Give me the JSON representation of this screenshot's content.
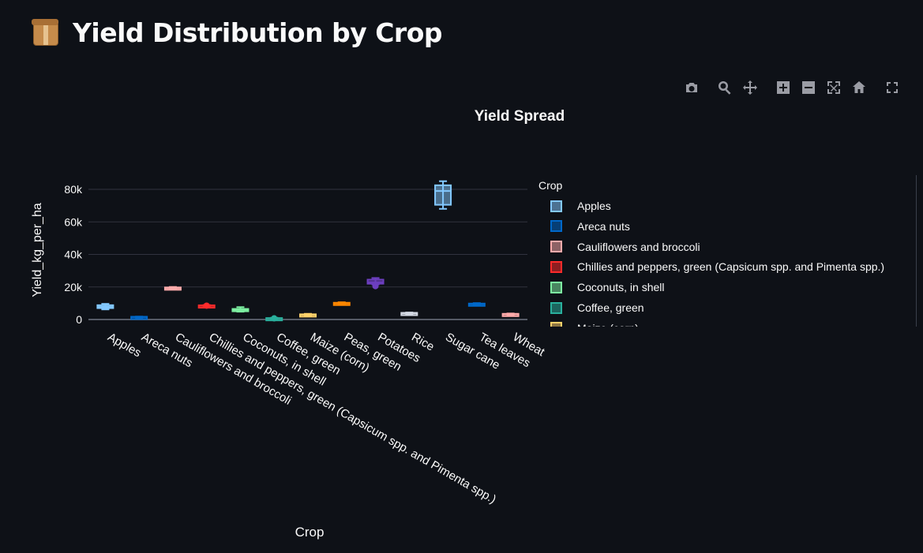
{
  "page": {
    "title": "Yield Distribution by Crop",
    "icon": "package-icon"
  },
  "modebar": {
    "buttons": [
      {
        "icon": "camera-icon",
        "label": "Download plot as a png"
      },
      {
        "icon": "zoom-icon",
        "label": "Zoom"
      },
      {
        "icon": "pan-icon",
        "label": "Pan"
      },
      {
        "icon": "zoom-in-icon",
        "label": "Zoom in"
      },
      {
        "icon": "zoom-out-icon",
        "label": "Zoom out"
      },
      {
        "icon": "autoscale-icon",
        "label": "Autoscale"
      },
      {
        "icon": "home-icon",
        "label": "Reset axes"
      },
      {
        "icon": "fullscreen-icon",
        "label": "Fullscreen"
      }
    ]
  },
  "chart_data": {
    "type": "box",
    "title": "Yield Spread",
    "xlabel": "Crop",
    "ylabel": "Yield_kg_per_ha",
    "ylim": [
      -2000,
      90000
    ],
    "yticks": [
      0,
      20000,
      40000,
      60000,
      80000
    ],
    "ytick_labels": [
      "0",
      "20k",
      "40k",
      "60k",
      "80k"
    ],
    "grid": true,
    "legend_title": "Crop",
    "legend_placement": "right",
    "categories": [
      "Apples",
      "Areca nuts",
      "Cauliflowers and broccoli",
      "Chillies and peppers, green (Capsicum spp. and Pimenta spp.)",
      "Coconuts, in shell",
      "Coffee, green",
      "Maize (corn)",
      "Peas, green",
      "Potatoes",
      "Rice",
      "Sugar cane",
      "Tea leaves",
      "Wheat"
    ],
    "series": [
      {
        "name": "Apples",
        "color": "#83c9ff",
        "min": 6200,
        "q1": 7000,
        "median": 7800,
        "q3": 8800,
        "max": 9600
      },
      {
        "name": "Areca nuts",
        "color": "#0068c9",
        "min": 1200,
        "q1": 1300,
        "median": 1500,
        "q3": 1700,
        "max": 1800
      },
      {
        "name": "Cauliflowers and broccoli",
        "color": "#ffabab",
        "min": 18500,
        "q1": 18900,
        "median": 19300,
        "q3": 19700,
        "max": 20000
      },
      {
        "name": "Chillies and peppers, green (Capsicum spp. and Pimenta spp.)",
        "color": "#ff2b2b",
        "min": 8100,
        "q1": 8300,
        "median": 8500,
        "q3": 8700,
        "max": 8900,
        "outliers": [
          8500
        ]
      },
      {
        "name": "Coconuts, in shell",
        "color": "#7defa1",
        "min": 4800,
        "q1": 5300,
        "median": 5800,
        "q3": 6500,
        "max": 7600
      },
      {
        "name": "Coffee, green",
        "color": "#29b09d",
        "min": 400,
        "q1": 550,
        "median": 700,
        "q3": 900,
        "max": 1100,
        "outliers": [
          700
        ]
      },
      {
        "name": "Maize (corn)",
        "color": "#ffd16a",
        "min": 2400,
        "q1": 2600,
        "median": 2900,
        "q3": 3200,
        "max": 3500
      },
      {
        "name": "Peas, green",
        "color": "#ff8700",
        "min": 9200,
        "q1": 9500,
        "median": 9900,
        "q3": 10300,
        "max": 10600
      },
      {
        "name": "Potatoes",
        "color": "#6d3fc0",
        "min": 21500,
        "q1": 22000,
        "median": 23000,
        "q3": 24500,
        "max": 25500,
        "outliers": [
          20500
        ]
      },
      {
        "name": "Rice",
        "color": "#d5dae5",
        "min": 3500,
        "q1": 3700,
        "median": 3900,
        "q3": 4100,
        "max": 4300
      },
      {
        "name": "Sugar cane",
        "color": "#83c9ff",
        "min": 68000,
        "q1": 70500,
        "median": 79000,
        "q3": 82500,
        "max": 85000
      },
      {
        "name": "Tea leaves",
        "color": "#0068c9",
        "min": 8700,
        "q1": 9000,
        "median": 9400,
        "q3": 9800,
        "max": 10100
      },
      {
        "name": "Wheat",
        "color": "#ffabab",
        "min": 2900,
        "q1": 3100,
        "median": 3300,
        "q3": 3500,
        "max": 3700
      }
    ],
    "legend_entries": [
      {
        "name": "Apples",
        "color": "#83c9ff"
      },
      {
        "name": "Areca nuts",
        "color": "#0068c9"
      },
      {
        "name": "Cauliflowers and broccoli",
        "color": "#ffabab"
      },
      {
        "name": "Chillies and peppers, green (Capsicum spp. and Pimenta spp.)",
        "color": "#ff2b2b"
      },
      {
        "name": "Coconuts, in shell",
        "color": "#7defa1"
      },
      {
        "name": "Coffee, green",
        "color": "#29b09d"
      },
      {
        "name": "Maize (corn)",
        "color": "#ffd16a"
      }
    ]
  },
  "colors": {
    "background": "#0e1117",
    "grid": "#31333f",
    "text": "#fafafa"
  }
}
